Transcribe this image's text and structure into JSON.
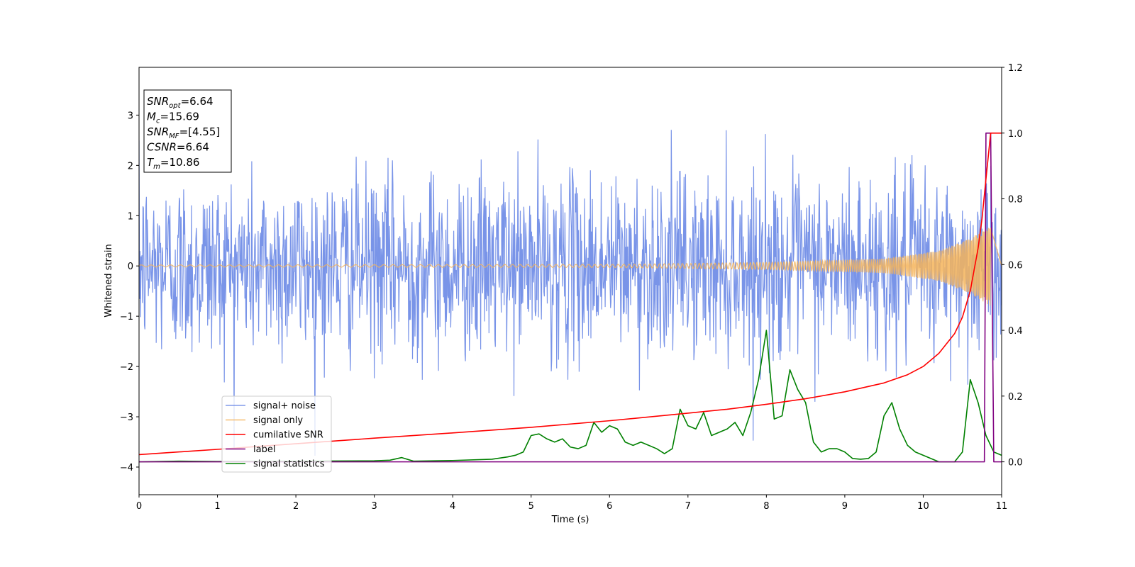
{
  "chart_data": {
    "type": "line",
    "xlabel": "Time (s)",
    "ylabel": "Whitened strain",
    "xlim": [
      0,
      11
    ],
    "ylim": [
      -4.55,
      3.95
    ],
    "y2lim": [
      -0.1,
      1.2
    ],
    "x_ticks": [
      "0",
      "1",
      "2",
      "3",
      "4",
      "5",
      "6",
      "7",
      "8",
      "9",
      "10",
      "11"
    ],
    "y_ticks": [
      "−4",
      "−3",
      "−2",
      "−1",
      "0",
      "1",
      "2",
      "3"
    ],
    "y2_ticks": [
      "0.0",
      "0.2",
      "0.4",
      "0.6",
      "0.8",
      "1.0",
      "1.2"
    ],
    "legend_position": "lower-left",
    "info_box": {
      "lines": [
        {
          "base": "SNR",
          "sub": "opt",
          "value": "=6.64"
        },
        {
          "base": "M",
          "sub": "c",
          "value": "=15.69"
        },
        {
          "base": "SNR",
          "sub": "MF",
          "value": "=[4.55]"
        },
        {
          "base": "CSNR",
          "sub": "",
          "value": "=6.64"
        },
        {
          "base": "T",
          "sub": "m",
          "value": "=10.86"
        }
      ]
    },
    "series": [
      {
        "name": "signal+ noise",
        "axis": "left",
        "color": "#6a88e6",
        "noise_std": 0.9,
        "points_per_second": 160
      },
      {
        "name": "signal only",
        "axis": "left",
        "color": "#f5b45a",
        "description_amplitude_x": [
          0,
          6,
          8,
          9.5,
          10.2,
          10.6,
          10.86
        ],
        "amplitude_y": [
          0.02,
          0.03,
          0.07,
          0.14,
          0.3,
          0.55,
          0.8
        ]
      },
      {
        "name": "cumilative SNR",
        "axis": "right",
        "color": "#ff0000",
        "x": [
          0,
          1,
          2,
          3,
          4,
          5,
          6,
          7,
          7.5,
          8,
          8.5,
          9,
          9.5,
          9.8,
          10,
          10.2,
          10.4,
          10.5,
          10.6,
          10.7,
          10.75,
          10.8,
          10.83,
          10.86,
          11
        ],
        "y": [
          0.022,
          0.038,
          0.055,
          0.072,
          0.088,
          0.105,
          0.125,
          0.148,
          0.16,
          0.175,
          0.192,
          0.213,
          0.24,
          0.265,
          0.29,
          0.33,
          0.39,
          0.44,
          0.52,
          0.65,
          0.74,
          0.86,
          0.93,
          1.0,
          1.0
        ]
      },
      {
        "name": "label",
        "axis": "right",
        "color": "#800080",
        "x": [
          0,
          10.78,
          10.8,
          10.86,
          10.9,
          11
        ],
        "y": [
          0,
          0,
          1.0,
          1.0,
          0,
          0
        ]
      },
      {
        "name": "signal statistics",
        "axis": "right",
        "color": "#008000",
        "x": [
          0,
          0.5,
          1,
          2,
          3,
          3.2,
          3.35,
          3.5,
          4,
          4.5,
          4.7,
          4.8,
          4.9,
          5,
          5.1,
          5.2,
          5.3,
          5.4,
          5.5,
          5.6,
          5.7,
          5.8,
          5.9,
          6,
          6.1,
          6.2,
          6.3,
          6.4,
          6.5,
          6.6,
          6.7,
          6.8,
          6.9,
          7,
          7.1,
          7.2,
          7.3,
          7.4,
          7.5,
          7.6,
          7.7,
          7.8,
          7.9,
          8,
          8.1,
          8.2,
          8.3,
          8.4,
          8.5,
          8.6,
          8.7,
          8.8,
          8.9,
          9,
          9.1,
          9.2,
          9.3,
          9.4,
          9.5,
          9.6,
          9.7,
          9.8,
          9.9,
          10,
          10.2,
          10.4,
          10.5,
          10.6,
          10.7,
          10.8,
          10.9,
          11
        ],
        "y": [
          0.0,
          0.002,
          0.001,
          0.002,
          0.003,
          0.005,
          0.013,
          0.002,
          0.004,
          0.008,
          0.015,
          0.02,
          0.03,
          0.08,
          0.085,
          0.07,
          0.06,
          0.07,
          0.045,
          0.04,
          0.05,
          0.12,
          0.09,
          0.11,
          0.1,
          0.06,
          0.05,
          0.06,
          0.05,
          0.04,
          0.025,
          0.04,
          0.16,
          0.11,
          0.1,
          0.15,
          0.08,
          0.09,
          0.1,
          0.12,
          0.08,
          0.15,
          0.25,
          0.4,
          0.13,
          0.14,
          0.28,
          0.22,
          0.18,
          0.06,
          0.03,
          0.04,
          0.04,
          0.03,
          0.01,
          0.008,
          0.01,
          0.03,
          0.14,
          0.18,
          0.1,
          0.05,
          0.03,
          0.02,
          0.0,
          0.0,
          0.03,
          0.25,
          0.18,
          0.08,
          0.03,
          0.02
        ]
      }
    ]
  }
}
